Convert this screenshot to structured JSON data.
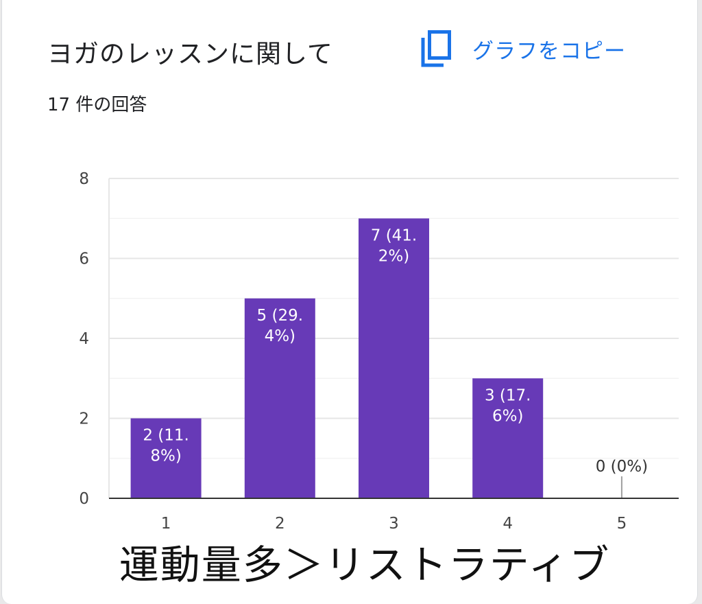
{
  "card": {
    "title": "ヨガのレッスンに関して",
    "copy_label": "グラフをコピー",
    "copy_icon": "copy-icon",
    "response_count": "17 件の回答"
  },
  "colors": {
    "bar": "#673ab7",
    "accent": "#1a73e8",
    "text": "#202124",
    "grid": "#eeeeee"
  },
  "chart_data": {
    "type": "bar",
    "categories": [
      "1",
      "2",
      "3",
      "4",
      "5"
    ],
    "values": [
      2,
      5,
      7,
      3,
      0
    ],
    "data_labels": [
      "2 (11.\n8%)",
      "5 (29.\n4%)",
      "7 (41.\n2%)",
      "3 (17.\n6%)",
      "0 (0%)"
    ],
    "yticks": [
      "0",
      "2",
      "4",
      "6",
      "8"
    ],
    "ylim": [
      0,
      8
    ],
    "grid": true,
    "xlabel": "運動量多＞リストラティブ",
    "ylabel": "",
    "title": ""
  }
}
